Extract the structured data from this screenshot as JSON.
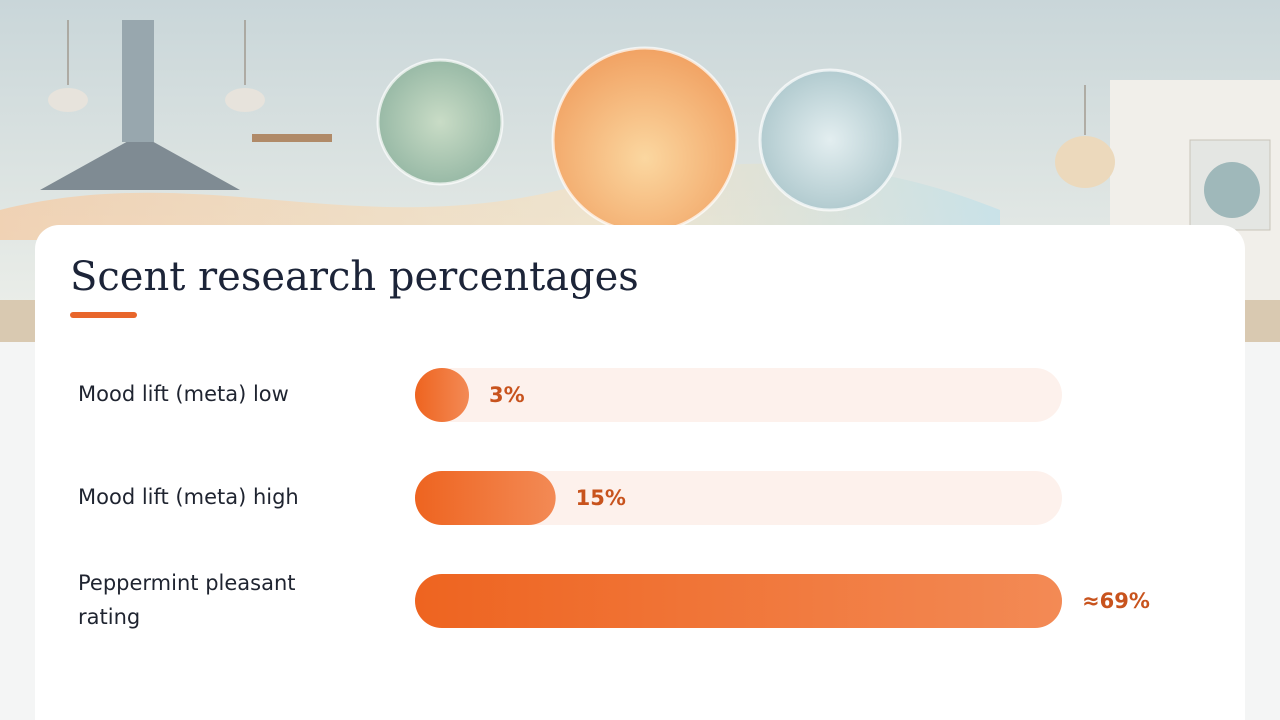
{
  "chart_data": {
    "type": "bar",
    "orientation": "horizontal",
    "title": "Scent research percentages",
    "categories": [
      "Mood lift (meta) low",
      "Mood lift (meta) high",
      "Peppermint pleasant rating"
    ],
    "values": [
      3,
      15,
      69
    ],
    "value_labels": [
      "3%",
      "15%",
      "≈69%"
    ],
    "color": "#ee6a2c"
  }
}
